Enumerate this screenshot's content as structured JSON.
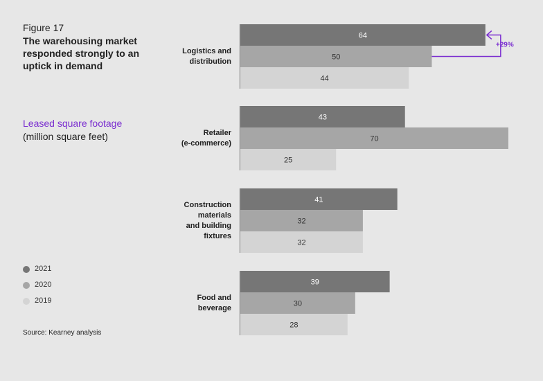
{
  "chart_data": {
    "type": "bar",
    "orientation": "horizontal",
    "figure_label": "Figure 17",
    "title": "The warehousing market responded strongly to an uptick in demand",
    "subtitle": "Leased square footage",
    "unit_label": "(million square feet)",
    "source": "Source: Kearney analysis",
    "categories": [
      "Logistics and\ndistribution",
      "Retailer\n(e-commerce)",
      "Construction\nmaterials\nand building\nfixtures",
      "Food and\nbeverage"
    ],
    "series": [
      {
        "name": "2021",
        "color": "#767676",
        "label_color": "#ffffff",
        "values": [
          64,
          43,
          41,
          39
        ]
      },
      {
        "name": "2020",
        "color": "#a6a6a6",
        "label_color": "#333333",
        "values": [
          50,
          70,
          32,
          30
        ]
      },
      {
        "name": "2019",
        "color": "#d4d4d4",
        "label_color": "#333333",
        "values": [
          44,
          25,
          32,
          28
        ]
      }
    ],
    "annotation": {
      "text": "+29%",
      "color": "#7b2fd0"
    }
  }
}
